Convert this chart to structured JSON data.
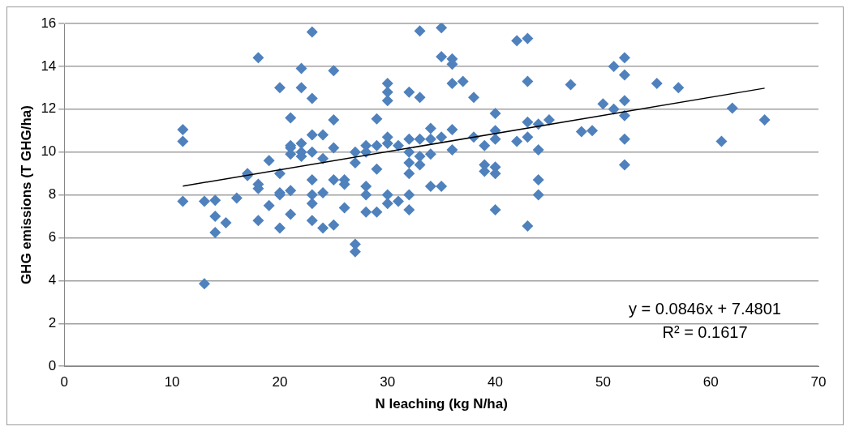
{
  "chart_data": {
    "type": "scatter",
    "xlabel": "N leaching (kg N/ha)",
    "ylabel": "GHG emissions (T GHG/ha)",
    "xlim": [
      0,
      70
    ],
    "xticks": [
      0,
      10,
      20,
      30,
      40,
      50,
      60,
      70
    ],
    "ylim": [
      0,
      16
    ],
    "yticks": [
      0,
      2,
      4,
      6,
      8,
      10,
      12,
      14,
      16
    ],
    "grid": "y",
    "marker": "diamond",
    "annotations": [
      "y = 0.0846x + 7.4801",
      "R² = 0.1617"
    ],
    "series": [
      {
        "type": "scatter",
        "color": "#4f81bd",
        "x": [
          11,
          11,
          11,
          13,
          13,
          14,
          14,
          14,
          15,
          16,
          17,
          17,
          18,
          18,
          18,
          18,
          19,
          19,
          20,
          20,
          20,
          20,
          20,
          21,
          21,
          21,
          21,
          21,
          21,
          22,
          22,
          22,
          22,
          22,
          23,
          23,
          23,
          23,
          23,
          23,
          23,
          23,
          24,
          24,
          24,
          24,
          25,
          25,
          25,
          25,
          25,
          26,
          26,
          26,
          27,
          27,
          27,
          27,
          28,
          28,
          28,
          28,
          28,
          29,
          29,
          29,
          29,
          30,
          30,
          30,
          30,
          30,
          30,
          30,
          31,
          31,
          32,
          32,
          32,
          32,
          32,
          32,
          32,
          33,
          33,
          33,
          33,
          33,
          34,
          34,
          34,
          34,
          35,
          35,
          35,
          35,
          36,
          36,
          36,
          36,
          36,
          37,
          38,
          38,
          39,
          39,
          39,
          40,
          40,
          40,
          40,
          40,
          40,
          42,
          42,
          43,
          43,
          43,
          43,
          43,
          44,
          44,
          44,
          44,
          45,
          47,
          48,
          49,
          50,
          51,
          51,
          52,
          52,
          52,
          52,
          52,
          52,
          55,
          57,
          61,
          62,
          65
        ],
        "values": [
          11.05,
          10.5,
          7.7,
          7.7,
          3.85,
          7.75,
          7.0,
          6.25,
          6.7,
          7.85,
          9.0,
          8.9,
          14.4,
          8.5,
          8.3,
          6.8,
          9.6,
          7.5,
          13.0,
          9.0,
          8.1,
          6.45,
          8.0,
          11.6,
          10.2,
          10.3,
          9.9,
          8.2,
          7.1,
          13.9,
          13.0,
          10.4,
          10.0,
          9.8,
          15.6,
          12.5,
          10.8,
          10.0,
          8.7,
          8.0,
          7.6,
          6.8,
          10.8,
          9.7,
          8.1,
          6.45,
          13.8,
          11.5,
          10.2,
          8.7,
          6.6,
          8.7,
          8.5,
          7.4,
          10.0,
          9.5,
          5.7,
          5.35,
          10.3,
          10.0,
          8.4,
          8.0,
          7.2,
          11.55,
          10.3,
          9.2,
          7.2,
          13.2,
          12.8,
          12.4,
          10.7,
          10.4,
          8.0,
          7.6,
          10.3,
          7.7,
          12.8,
          10.6,
          10.0,
          9.5,
          9.0,
          8.0,
          7.3,
          15.65,
          12.55,
          10.6,
          9.8,
          9.4,
          11.1,
          10.6,
          9.9,
          8.4,
          15.8,
          14.45,
          10.7,
          8.4,
          14.35,
          14.1,
          13.2,
          11.05,
          10.1,
          13.3,
          12.55,
          10.7,
          10.3,
          9.4,
          9.1,
          11.8,
          11.0,
          10.6,
          9.3,
          9.0,
          7.3,
          15.2,
          10.5,
          15.3,
          13.3,
          11.4,
          10.7,
          6.55,
          11.3,
          10.1,
          8.7,
          8.0,
          11.5,
          13.15,
          10.95,
          11.0,
          12.25,
          14.0,
          12.0,
          14.4,
          13.6,
          12.4,
          11.7,
          10.6,
          9.4,
          13.2,
          13.0,
          10.5,
          12.05,
          11.5
        ]
      },
      {
        "type": "line",
        "color": "#000000",
        "marker": "none",
        "x": [
          11,
          65
        ],
        "values": [
          8.41,
          12.98
        ]
      }
    ]
  }
}
